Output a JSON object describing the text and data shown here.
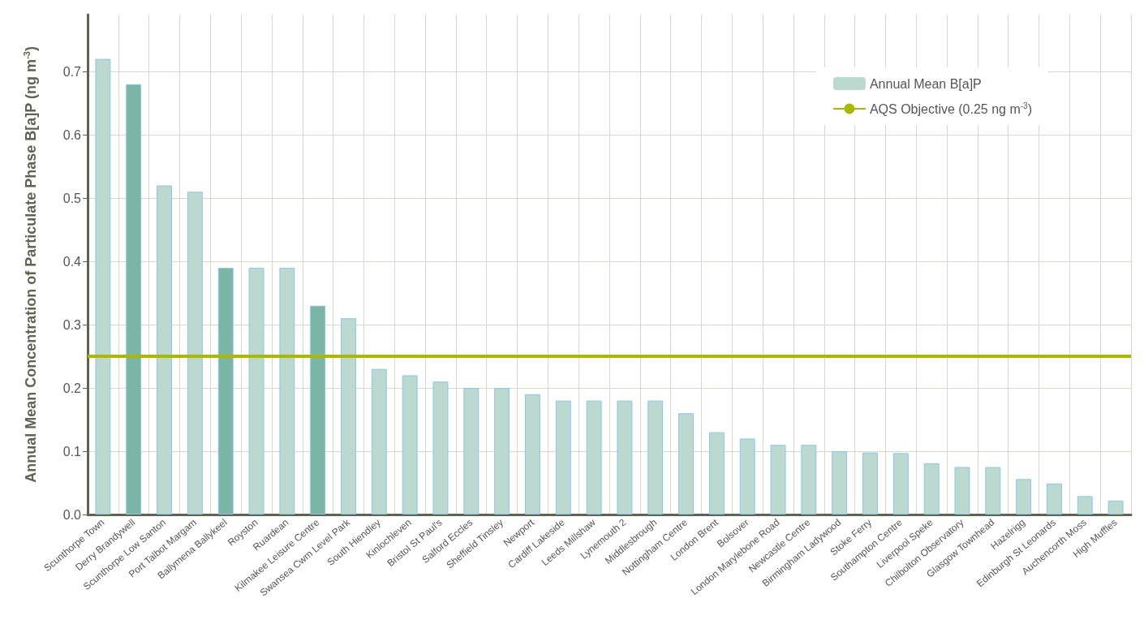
{
  "chart_data": {
    "type": "bar",
    "ylabel": "Annual Mean Concentration of Particulate Phase B[a]P (ng m$^{-3}$)",
    "categories": [
      "Scunthorpe Town",
      "Derry Brandywell",
      "Scunthorpe Low Santon",
      "Port Talbot Margam",
      "Ballymena Ballykeel",
      "Royston",
      "Ruardean",
      "Kilmakee Leisure Centre",
      "Swansea Cwm Level Park",
      "South Hiendley",
      "Kinlochleven",
      "Bristol St Paul's",
      "Salford Eccles",
      "Sheffield Tinsley",
      "Newport",
      "Cardiff Lakeside",
      "Leeds Millshaw",
      "Lynemouth 2",
      "Middlesbrough",
      "Nottingham Centre",
      "London Brent",
      "Bolsover",
      "London Marylebone Road",
      "Newcastle Centre",
      "Birmingham Ladywood",
      "Stoke Ferry",
      "Southampton Centre",
      "Liverpool Speke",
      "Chilbolton Observatory",
      "Glasgow Townhead",
      "Hazelrigg",
      "Edinburgh St Leonards",
      "Auchencorth Moss",
      "High Muffles"
    ],
    "series": [
      {
        "name": "Annual Mean B[a]P",
        "color": "#bcd9d0",
        "colors": [
          "#bcd9d0",
          "#7ab5a5",
          "#bcd9d0",
          "#bcd9d0",
          "#7ab5a5",
          "#bcd9d0",
          "#bcd9d0",
          "#7ab5a5",
          "#bcd9d0",
          "#bcd9d0",
          "#bcd9d0",
          "#bcd9d0",
          "#bcd9d0",
          "#bcd9d0",
          "#bcd9d0",
          "#bcd9d0",
          "#bcd9d0",
          "#bcd9d0",
          "#bcd9d0",
          "#bcd9d0",
          "#bcd9d0",
          "#bcd9d0",
          "#bcd9d0",
          "#bcd9d0",
          "#bcd9d0",
          "#bcd9d0",
          "#bcd9d0",
          "#bcd9d0",
          "#bcd9d0",
          "#bcd9d0",
          "#bcd9d0",
          "#bcd9d0",
          "#bcd9d0",
          "#bcd9d0"
        ],
        "values": [
          0.72,
          0.68,
          0.52,
          0.51,
          0.39,
          0.39,
          0.39,
          0.33,
          0.31,
          0.23,
          0.22,
          0.21,
          0.2,
          0.2,
          0.19,
          0.18,
          0.18,
          0.18,
          0.18,
          0.16,
          0.13,
          0.12,
          0.11,
          0.11,
          0.1,
          0.098,
          0.097,
          0.081,
          0.075,
          0.075,
          0.056,
          0.049,
          0.029,
          0.022
        ]
      }
    ],
    "ref_lines": [
      {
        "axis": "y",
        "value": 0.25,
        "label": "AQS Objective (0.25 ng m$^{-3}$)",
        "color": "#aab800"
      }
    ],
    "ylim": [
      0,
      0.79
    ],
    "yticks": [
      {
        "value": 0,
        "label": "0.0"
      },
      0.1,
      0.2,
      0.3,
      0.4,
      0.5,
      0.6,
      0.7
    ],
    "grid": true,
    "legend": "top right"
  }
}
